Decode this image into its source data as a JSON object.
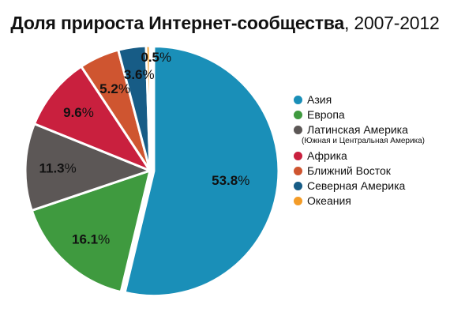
{
  "title": {
    "main": "Доля прироста Интернет-сообщества",
    "separator": ", ",
    "years": "2007-2012"
  },
  "chart_data": {
    "type": "pie",
    "categories": [
      "Азия",
      "Европа",
      "Латинская Америка",
      "Африка",
      "Ближний Восток",
      "Северная Америка",
      "Океания"
    ],
    "values": [
      53.8,
      16.1,
      11.3,
      9.6,
      5.2,
      3.6,
      0.5
    ],
    "data_labels": [
      "53.8%",
      "16.1%",
      "11.3%",
      "9.6%",
      "5.2%",
      "3.6%",
      "0.5%"
    ],
    "colors": [
      "#1a8fb8",
      "#3f9a3f",
      "#5c5756",
      "#c9203e",
      "#cf5530",
      "#175c86",
      "#f39c28"
    ],
    "start_angle_deg": 0,
    "direction": "clockwise",
    "exploded_slice": "Азия",
    "legend_position": "right",
    "legend_notes": {
      "Латинская Америка": "(Южная и Центральная Америка)"
    }
  }
}
